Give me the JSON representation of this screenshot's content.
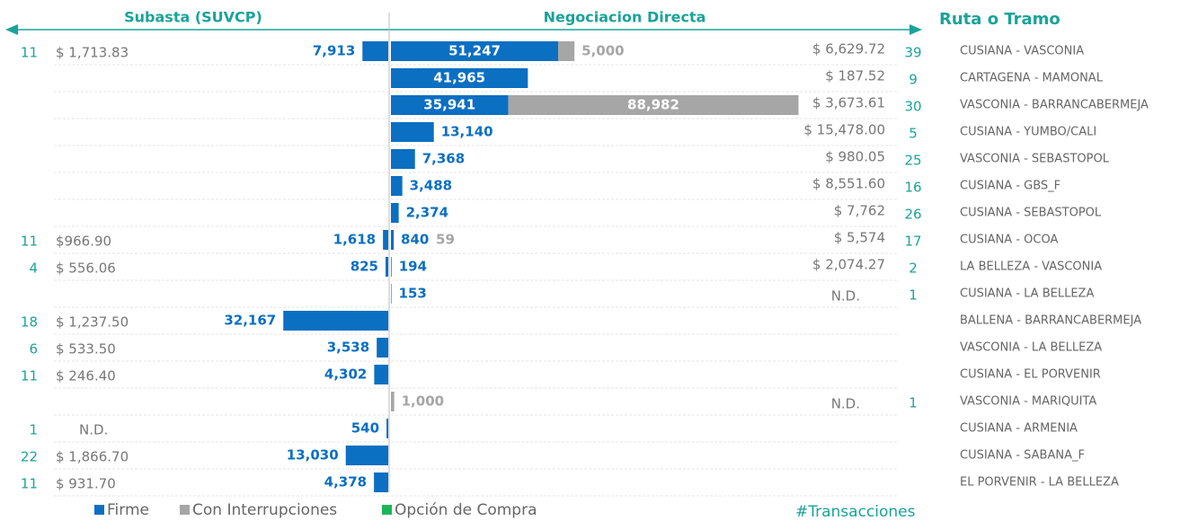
{
  "chart_data": {
    "type": "butterfly",
    "left_title": "Subasta (SUVCP)",
    "right_title": "Negociacion Directa",
    "routes_title": "Ruta o Tramo",
    "categories": [
      "CUSIANA - VASCONIA",
      "CARTAGENA - MAMONAL",
      "VASCONIA - BARRANCABERMEJA",
      "CUSIANA - YUMBO/CALI",
      "VASCONIA - SEBASTOPOL",
      "CUSIANA - GBS_F",
      "CUSIANA - SEBASTOPOL",
      "CUSIANA - OCOA",
      "LA BELLEZA - VASCONIA",
      "CUSIANA - LA BELLEZA",
      "BALLENA - BARRANCABERMEJA",
      "VASCONIA - LA BELLEZA",
      "CUSIANA - EL PORVENIR",
      "VASCONIA - MARIQUITA",
      "CUSIANA - ARMENIA",
      "CUSIANA - SABANA_F",
      "EL PORVENIR - LA BELLEZA"
    ],
    "left_series": [
      {
        "color": "#0b6fc2",
        "values": [
          7913,
          null,
          null,
          null,
          null,
          null,
          null,
          1618,
          825,
          null,
          32167,
          3538,
          4302,
          null,
          540,
          13030,
          4378
        ],
        "value_labels": [
          "7,913",
          null,
          null,
          null,
          null,
          null,
          null,
          "1,618",
          "825",
          null,
          "32,167",
          "3,538",
          "4,302",
          null,
          "540",
          "13,030",
          "4,378"
        ]
      }
    ],
    "left_prices": [
      "$ 1,713.83",
      null,
      null,
      null,
      null,
      null,
      null,
      "$966.90",
      "$ 556.06",
      null,
      "$ 1,237.50",
      "$ 533.50",
      "$ 246.40",
      null,
      "N.D.",
      "$ 1,866.70",
      "$ 931.70"
    ],
    "left_transactions": [
      11,
      null,
      null,
      null,
      null,
      null,
      null,
      11,
      4,
      null,
      18,
      6,
      11,
      null,
      1,
      22,
      11
    ],
    "right_series": [
      {
        "name": "Firme",
        "color": "#0b6fc2",
        "values": [
          51247,
          41965,
          35941,
          13140,
          7368,
          3488,
          2374,
          840,
          194,
          153,
          null,
          null,
          null,
          null,
          null,
          null,
          null
        ],
        "value_labels": [
          "51,247",
          "41,965",
          "35,941",
          "13,140",
          "7,368",
          "3,488",
          "2,374",
          "840",
          "194",
          "153",
          null,
          null,
          null,
          null,
          null,
          null,
          null
        ]
      },
      {
        "name": "Con Interrupciones",
        "color": "#a6a6a6",
        "values": [
          5000,
          null,
          88982,
          null,
          null,
          null,
          null,
          59,
          null,
          null,
          null,
          null,
          null,
          1000,
          null,
          null,
          null
        ],
        "value_labels": [
          "5,000",
          null,
          "88,982",
          null,
          null,
          null,
          null,
          "59",
          null,
          null,
          null,
          null,
          null,
          "1,000",
          null,
          null,
          null
        ]
      },
      {
        "name": "Opción de Compra",
        "color": "#1db45a",
        "values": [
          null,
          null,
          null,
          null,
          null,
          null,
          null,
          null,
          null,
          null,
          null,
          null,
          null,
          null,
          null,
          null,
          null
        ]
      }
    ],
    "right_prices": [
      "$ 6,629.72",
      "$ 187.52",
      "$ 3,673.61",
      "$ 15,478.00",
      "$ 980.05",
      "$ 8,551.60",
      "$ 7,762",
      "$ 5,574",
      "$ 2,074.27",
      "N.D.",
      null,
      null,
      null,
      "N.D.",
      null,
      null,
      null
    ],
    "right_transactions": [
      39,
      9,
      30,
      5,
      25,
      16,
      26,
      17,
      2,
      1,
      null,
      null,
      null,
      1,
      null,
      null,
      null
    ],
    "transactions_legend": "#Transacciones"
  }
}
